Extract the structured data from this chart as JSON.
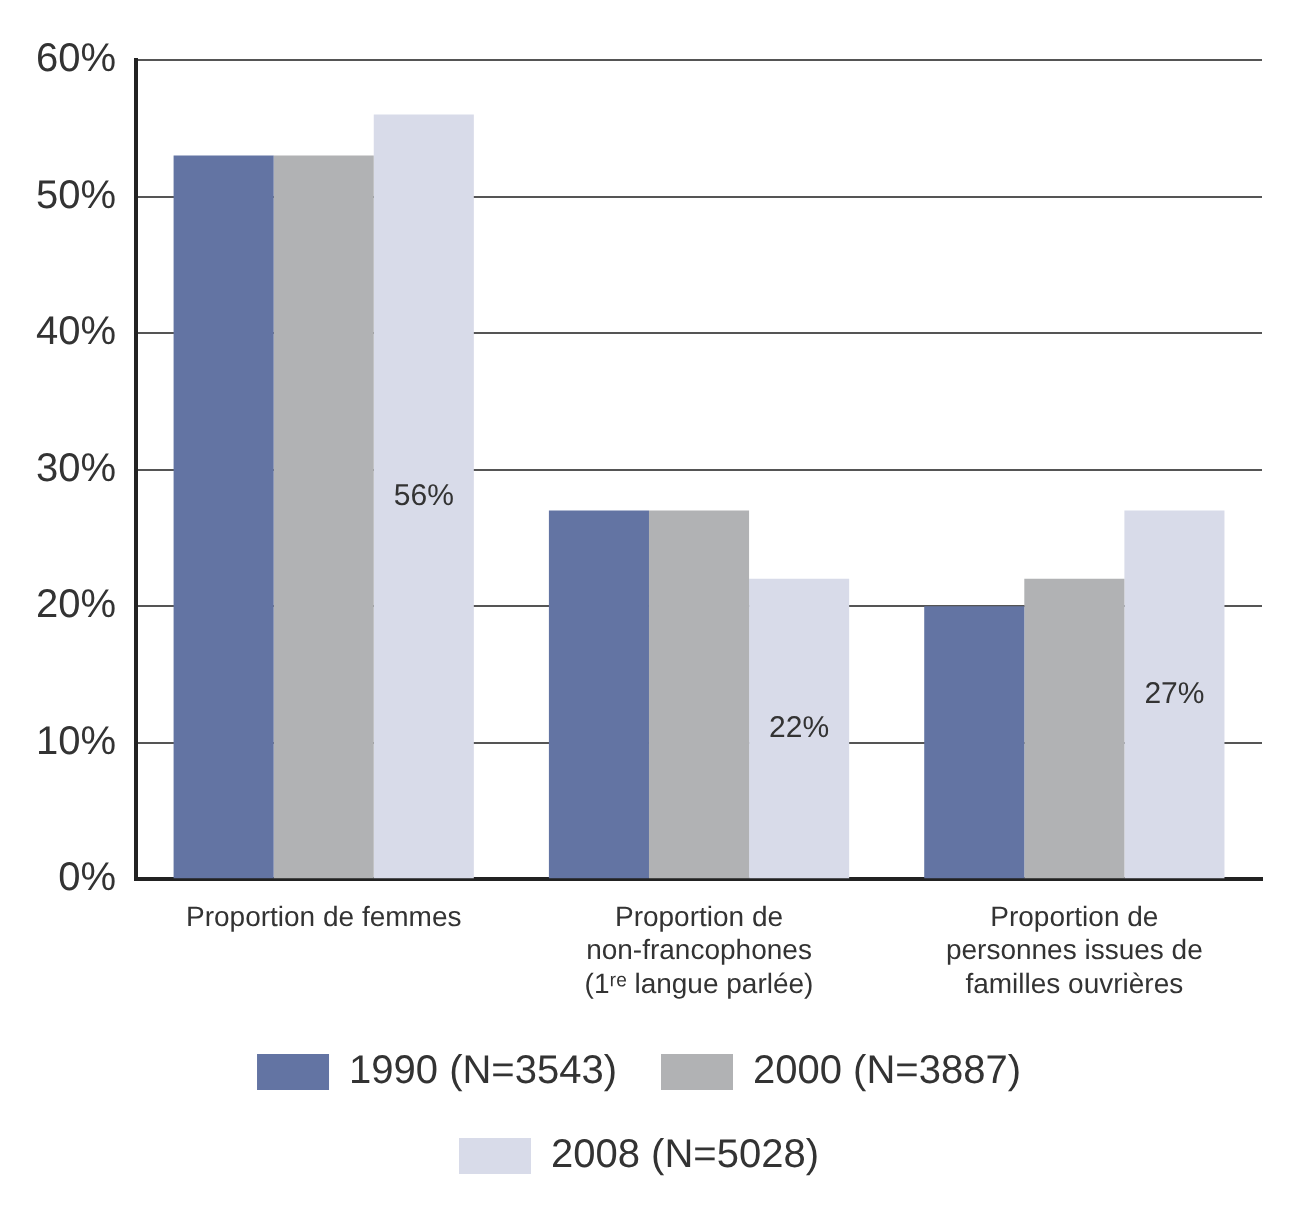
{
  "chart_data": {
    "type": "bar",
    "categories": [
      "Proportion de femmes",
      "Proportion de non-francophones (1ʳᵉ langue parlée)",
      "Proportion de personnes issues de familles ouvrières"
    ],
    "series": [
      {
        "name": "1990 (N=3543)",
        "color": "#6374a3",
        "values": [
          53,
          27,
          20
        ]
      },
      {
        "name": "2000 (N=3887)",
        "color": "#b1b2b4",
        "values": [
          53,
          27,
          22
        ]
      },
      {
        "name": "2008 (N=5028)",
        "color": "#d8dbe9",
        "values": [
          56,
          22,
          27
        ],
        "value_labels": [
          "56%",
          "22%",
          "27%"
        ]
      }
    ],
    "ylim": [
      0,
      60
    ],
    "yticks": [
      {
        "value": 0,
        "label": "0%"
      },
      {
        "value": 10,
        "label": "10%"
      },
      {
        "value": 20,
        "label": "20%"
      },
      {
        "value": 30,
        "label": "30%"
      },
      {
        "value": 40,
        "label": "40%"
      },
      {
        "value": 50,
        "label": "50%"
      },
      {
        "value": 60,
        "label": "60%"
      }
    ],
    "grid": "y",
    "legend": "bottom"
  }
}
